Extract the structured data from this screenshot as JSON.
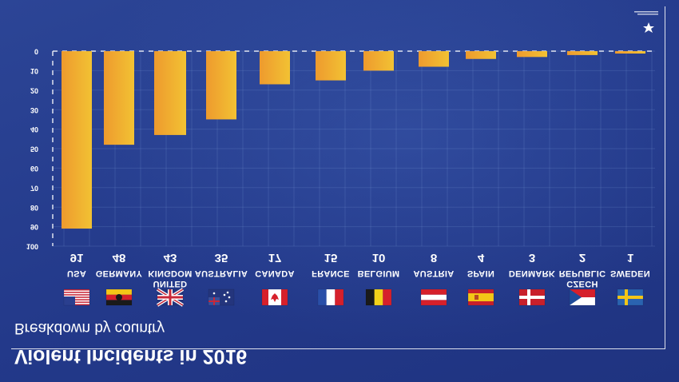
{
  "chart_data": {
    "type": "bar",
    "title": "Violent Incidents in 2016",
    "subtitle": "Breakdown by country",
    "categories": [
      "USA",
      "GERMANY",
      "UNITED KINGDOM",
      "AUSTRALIA",
      "CANADA",
      "FRANCE",
      "BELGIUM",
      "AUSTRIA",
      "SPAIN",
      "DENMARK",
      "CZECH REPUBLIC",
      "SWEDEN"
    ],
    "category_lines": [
      [
        "USA"
      ],
      [
        "GERMANY"
      ],
      [
        "KINGDOM",
        "UNITED"
      ],
      [
        "AUSTRALIA"
      ],
      [
        "CANADA"
      ],
      [
        "FRANCE"
      ],
      [
        "BELGIUM"
      ],
      [
        "AUSTRIA"
      ],
      [
        "SPAIN"
      ],
      [
        "DENMARK"
      ],
      [
        "REPUBLIC",
        "CZECH"
      ],
      [
        "SWEDEN"
      ]
    ],
    "values": [
      91,
      48,
      43,
      35,
      17,
      15,
      10,
      8,
      4,
      3,
      2,
      1
    ],
    "value_labels": [
      "91",
      "48",
      "43",
      "35",
      "17",
      "15",
      "10",
      "8",
      "4",
      "3",
      "2",
      "1"
    ],
    "ylim": [
      0,
      100
    ],
    "yticks": [
      0,
      10,
      20,
      30,
      40,
      50,
      60,
      70,
      80,
      90,
      100
    ],
    "orientation": "image mirrored vertically (bars hang down from top axis)",
    "grid": true,
    "colors": {
      "bar_top": "#f2c233",
      "bar_bottom": "#ee9a2e",
      "background": "#263d8c",
      "text": "#ffffff"
    },
    "flags": [
      "us-flag",
      "germany-flag",
      "uk-flag",
      "australia-flag",
      "canada-flag",
      "france-flag",
      "belgium-flag",
      "austria-flag",
      "spain-flag",
      "denmark-flag",
      "czech-flag",
      "sweden-flag"
    ]
  },
  "logo": {
    "icon": "crescent-star-icon"
  }
}
